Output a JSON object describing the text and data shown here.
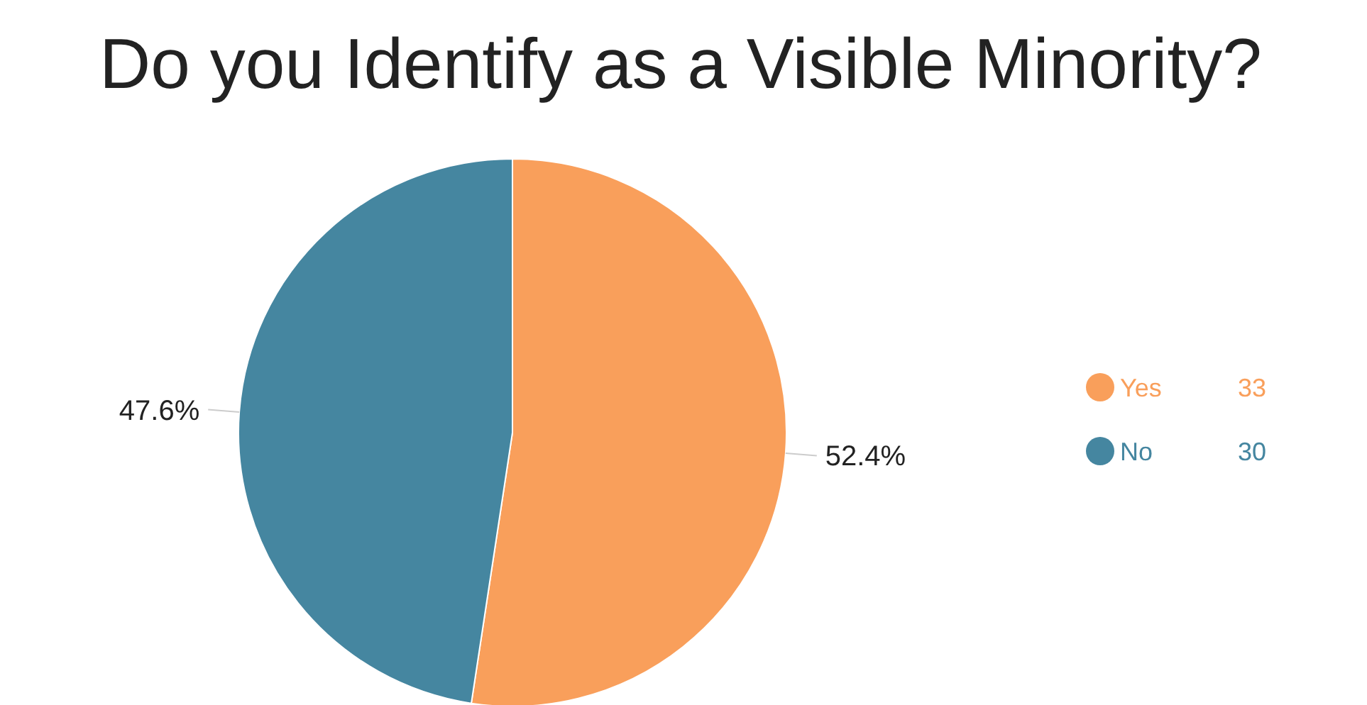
{
  "chart_data": {
    "type": "pie",
    "title": "Do you Identify as a Visible Minority?",
    "categories": [
      "Yes",
      "No"
    ],
    "values": [
      52.4,
      47.6
    ],
    "colors": [
      "#f99f5b",
      "#4586a0"
    ],
    "value_labels": [
      "52.4%",
      "47.6%"
    ],
    "annotations": [
      {
        "text": "33",
        "x": "Yes"
      },
      {
        "text": "30",
        "x": "No"
      }
    ],
    "legend": "right"
  }
}
